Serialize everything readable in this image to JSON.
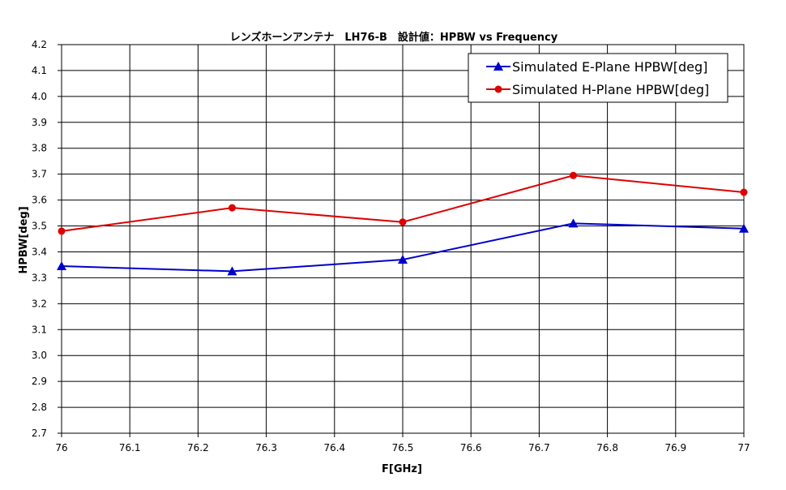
{
  "chart_data": {
    "type": "line",
    "title": "レンズホーンアンテナ　LH76-B　設計値：HPBW vs Frequency",
    "xlabel": "F[GHz]",
    "ylabel": "HPBW[deg]",
    "xlim": [
      76,
      77
    ],
    "ylim": [
      2.7,
      4.2
    ],
    "x_ticks": [
      "76",
      "76.1",
      "76.2",
      "76.3",
      "76.4",
      "76.5",
      "76.6",
      "76.7",
      "76.8",
      "76.9",
      "77"
    ],
    "y_ticks": [
      "2.7",
      "2.8",
      "2.9",
      "3.0",
      "3.1",
      "3.2",
      "3.3",
      "3.4",
      "3.5",
      "3.6",
      "3.7",
      "3.8",
      "3.9",
      "4.0",
      "4.1",
      "4.2"
    ],
    "grid": true,
    "legend_position": "top-right",
    "x": [
      76,
      76.25,
      76.5,
      76.75,
      77
    ],
    "series": [
      {
        "name": "Simulated E-Plane HPBW[deg]",
        "values": [
          3.345,
          3.325,
          3.37,
          3.51,
          3.49
        ],
        "color": "#0000cc",
        "marker": "triangle"
      },
      {
        "name": "Simulated H-Plane HPBW[deg]",
        "values": [
          3.48,
          3.57,
          3.515,
          3.695,
          3.63
        ],
        "color": "#dd0000",
        "marker": "circle"
      }
    ]
  }
}
